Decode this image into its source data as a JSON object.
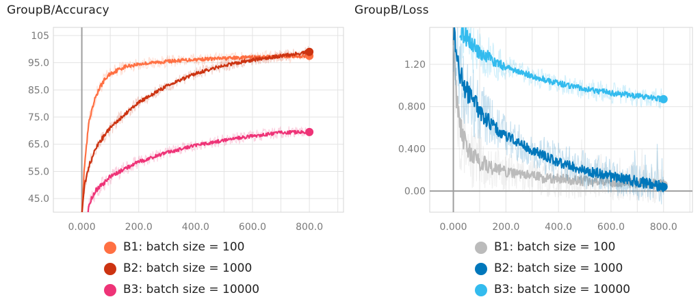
{
  "chart_data": [
    {
      "type": "line",
      "title": "GroupB/Accuracy",
      "xlabel": "",
      "ylabel": "",
      "xlim": [
        -100,
        920
      ],
      "ylim": [
        40,
        108
      ],
      "xticks": [
        0,
        200,
        400,
        600,
        800
      ],
      "xtick_labels": [
        "0.000",
        "200.0",
        "400.0",
        "600.0",
        "800.0"
      ],
      "yticks": [
        45,
        55,
        65,
        75,
        85,
        95,
        105
      ],
      "ytick_labels": [
        "45.0",
        "55.0",
        "65.0",
        "75.0",
        "85.0",
        "95.0",
        "105"
      ],
      "grid": true,
      "legend_position": "bottom",
      "series": [
        {
          "name": "B1: batch size = 100",
          "color": "#ff7043",
          "x": [
            0,
            10,
            25,
            50,
            75,
            100,
            150,
            200,
            300,
            400,
            500,
            600,
            700,
            800
          ],
          "y": [
            40,
            58,
            73,
            83,
            88,
            91,
            93.5,
            94.5,
            95.5,
            96.2,
            96.6,
            97,
            97.3,
            97.5
          ]
        },
        {
          "name": "B2: batch size = 1000",
          "color": "#cc3311",
          "x": [
            0,
            10,
            25,
            50,
            100,
            150,
            200,
            300,
            400,
            500,
            600,
            700,
            800
          ],
          "y": [
            40,
            50,
            57,
            64,
            71,
            76,
            80.5,
            86.5,
            91,
            94,
            96,
            97.5,
            99
          ]
        },
        {
          "name": "B3: batch size = 10000",
          "color": "#ee3377",
          "x": [
            20,
            30,
            50,
            100,
            150,
            200,
            300,
            400,
            500,
            600,
            700,
            800
          ],
          "y": [
            40,
            44,
            48,
            53,
            56,
            58.5,
            62,
            64.5,
            66.5,
            68,
            69.3,
            69.5
          ]
        }
      ]
    },
    {
      "type": "line",
      "title": "GroupB/Loss",
      "xlabel": "",
      "ylabel": "",
      "xlim": [
        -90,
        910
      ],
      "ylim": [
        -0.2,
        1.55
      ],
      "xticks": [
        0,
        200,
        400,
        600,
        800
      ],
      "xtick_labels": [
        "0.000",
        "200.0",
        "400.0",
        "600.0",
        "800.0"
      ],
      "yticks": [
        0,
        0.4,
        0.8,
        1.2
      ],
      "ytick_labels": [
        "0.00",
        "0.400",
        "0.800",
        "1.20"
      ],
      "grid": true,
      "legend_position": "bottom",
      "series": [
        {
          "name": "B1: batch size = 100",
          "color": "#bbbbbb",
          "x": [
            0,
            10,
            25,
            50,
            75,
            100,
            150,
            200,
            300,
            400,
            500,
            600,
            700,
            800
          ],
          "y": [
            1.5,
            0.95,
            0.6,
            0.42,
            0.33,
            0.28,
            0.22,
            0.18,
            0.14,
            0.11,
            0.1,
            0.09,
            0.08,
            0.06
          ]
        },
        {
          "name": "B2: batch size = 1000",
          "color": "#0077bb",
          "x": [
            0,
            10,
            25,
            50,
            75,
            100,
            150,
            200,
            300,
            400,
            500,
            600,
            700,
            800
          ],
          "y": [
            1.55,
            1.35,
            1.1,
            0.95,
            0.85,
            0.76,
            0.62,
            0.52,
            0.38,
            0.28,
            0.2,
            0.14,
            0.09,
            0.04
          ]
        },
        {
          "name": "B3: batch size = 10000",
          "color": "#33bbee",
          "x": [
            25,
            50,
            75,
            100,
            150,
            200,
            300,
            400,
            500,
            600,
            700,
            800
          ],
          "y": [
            1.55,
            1.45,
            1.38,
            1.32,
            1.24,
            1.17,
            1.09,
            1.02,
            0.97,
            0.93,
            0.9,
            0.87
          ]
        }
      ]
    }
  ]
}
